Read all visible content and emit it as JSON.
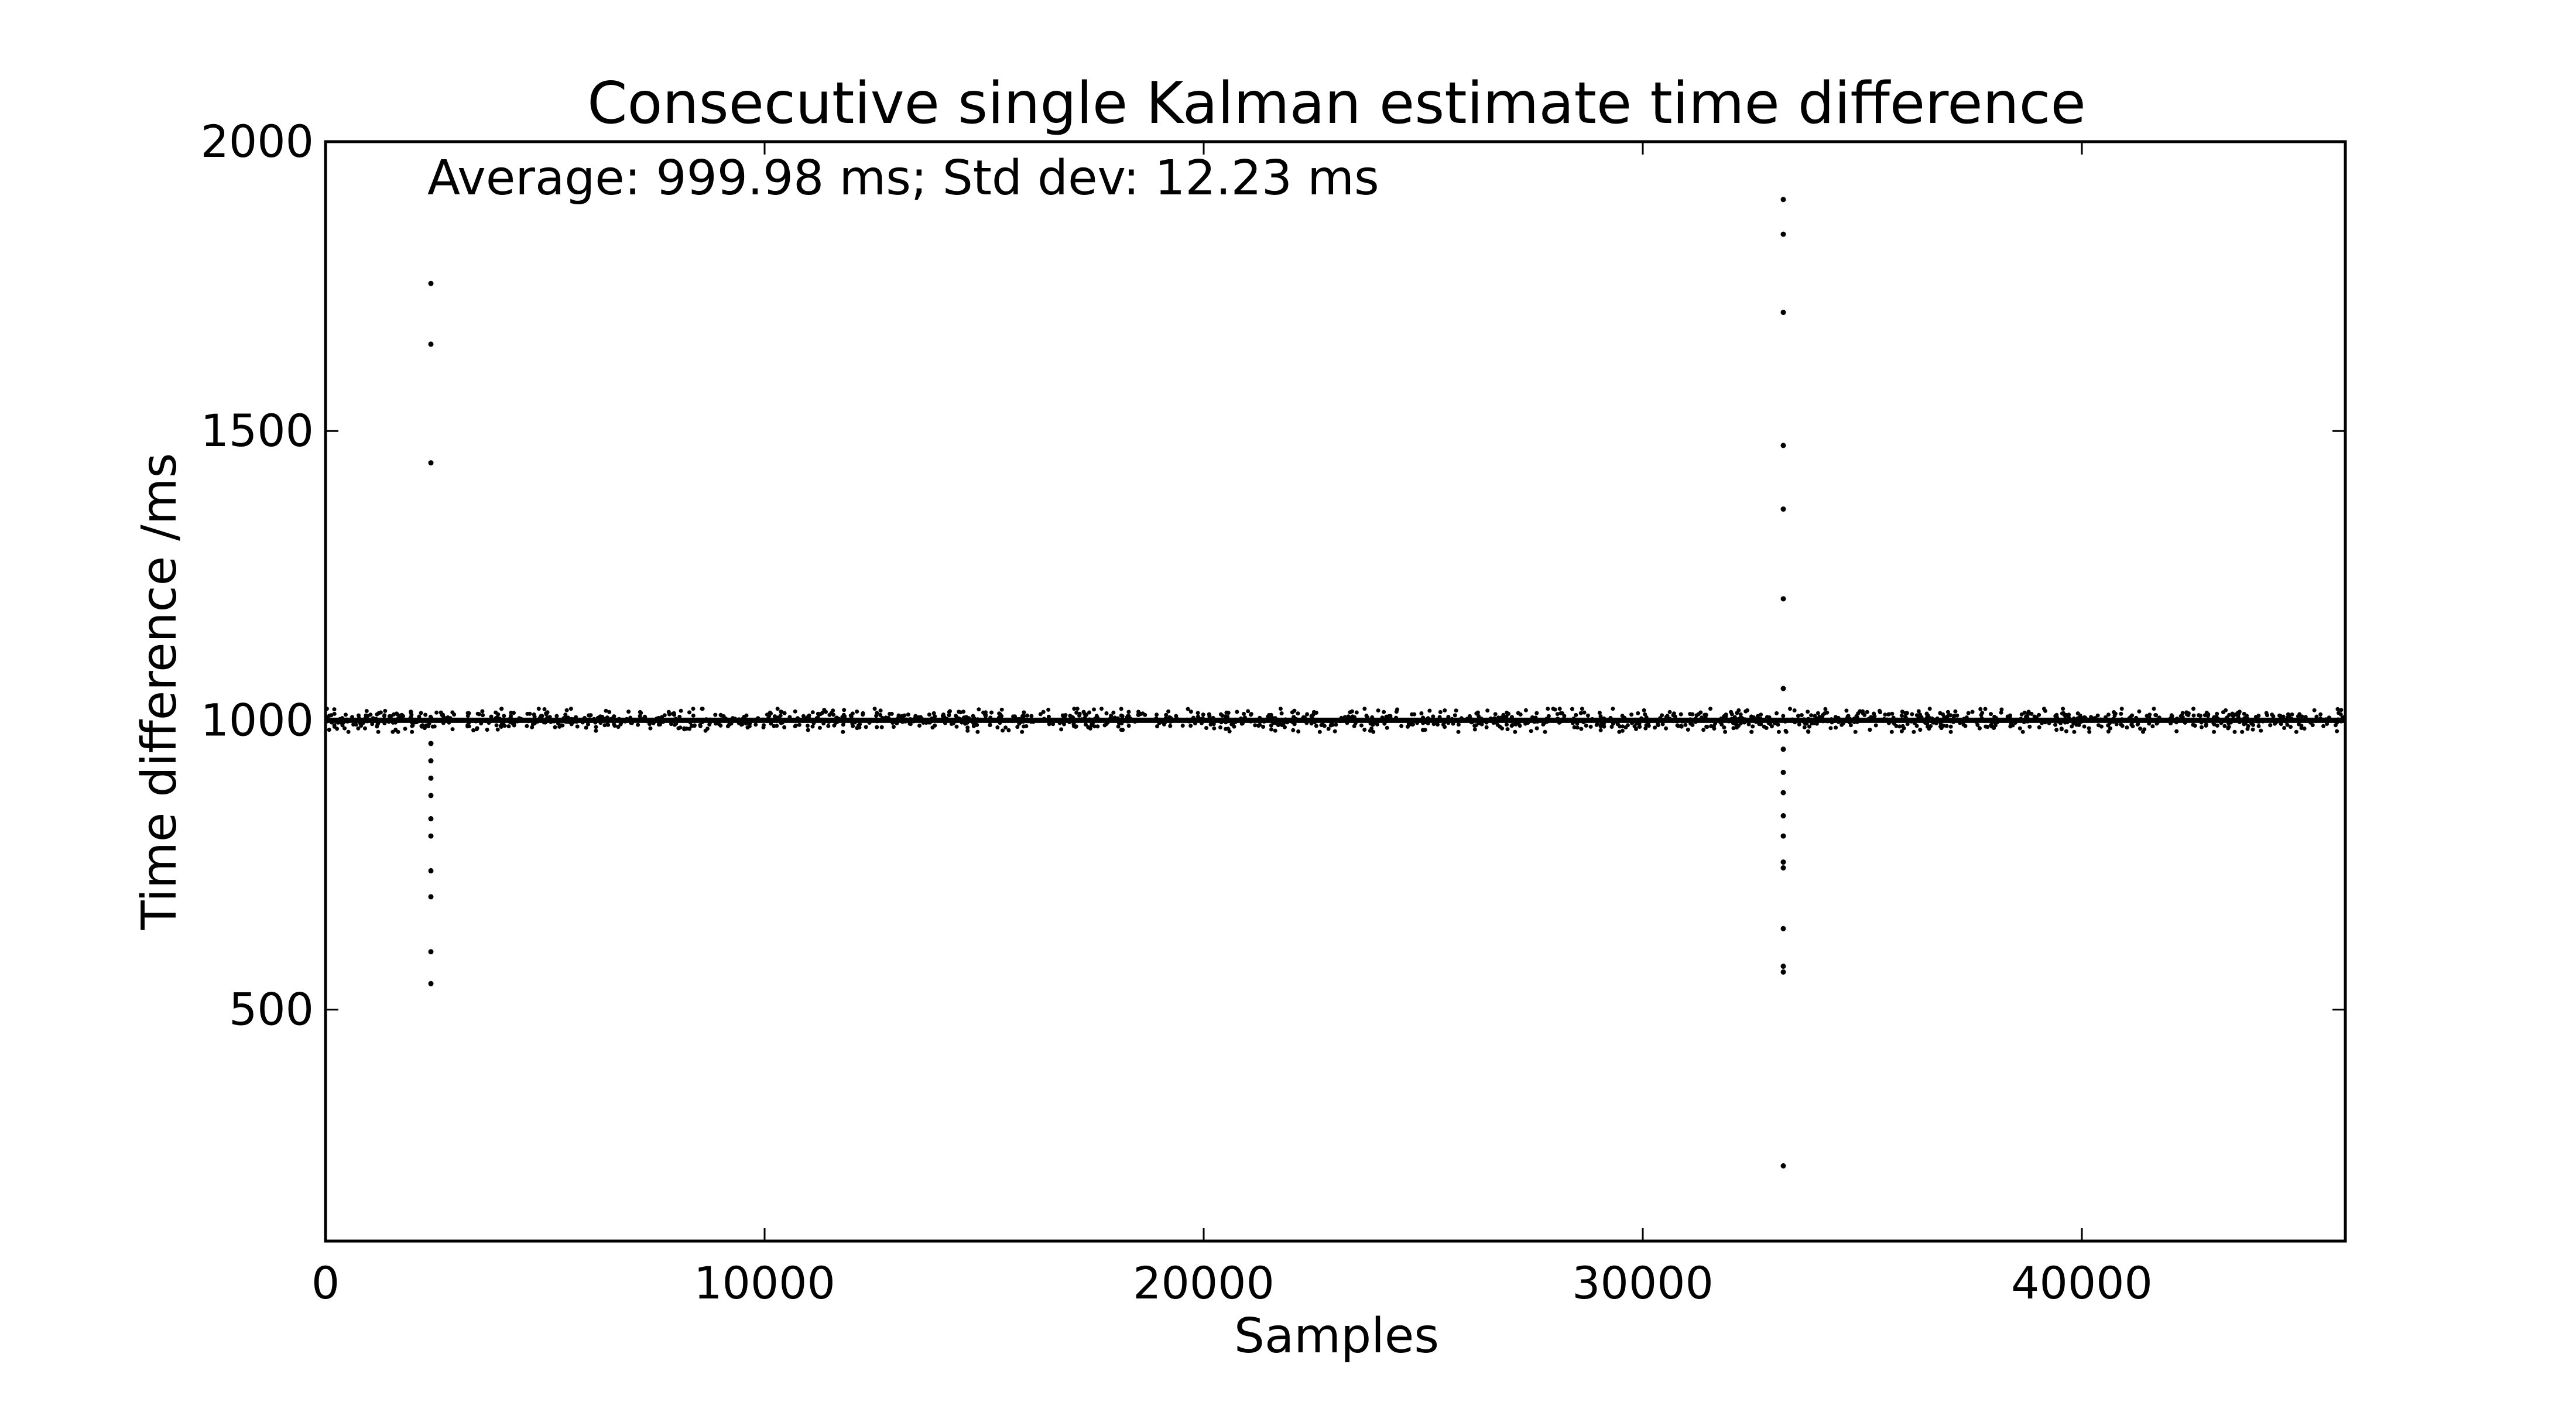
{
  "chart_data": {
    "type": "scatter",
    "title": "Consecutive single Kalman estimate time difference",
    "xlabel": "Samples",
    "ylabel": "Time difference /ms",
    "annotation": "Average: 999.98 ms;  Std dev: 12.23 ms",
    "xlim": [
      0,
      46000
    ],
    "ylim": [
      100,
      2000
    ],
    "x_ticks": [
      0,
      10000,
      20000,
      30000,
      40000
    ],
    "y_ticks": [
      500,
      1000,
      1500,
      2000
    ],
    "grid": false,
    "legend": "none",
    "marker_color": "#000000",
    "baseline": {
      "x_range": [
        0,
        46000
      ],
      "center": 1000,
      "spread": 20,
      "description_count": 1800
    },
    "outliers": [
      {
        "x": 2400,
        "y": 1755
      },
      {
        "x": 2400,
        "y": 1650
      },
      {
        "x": 2400,
        "y": 1445
      },
      {
        "x": 2400,
        "y": 960
      },
      {
        "x": 2400,
        "y": 930
      },
      {
        "x": 2400,
        "y": 900
      },
      {
        "x": 2400,
        "y": 870
      },
      {
        "x": 2400,
        "y": 830
      },
      {
        "x": 2400,
        "y": 800
      },
      {
        "x": 2400,
        "y": 740
      },
      {
        "x": 2400,
        "y": 695
      },
      {
        "x": 2400,
        "y": 600
      },
      {
        "x": 2400,
        "y": 545
      },
      {
        "x": 33200,
        "y": 1900
      },
      {
        "x": 33200,
        "y": 1840
      },
      {
        "x": 33200,
        "y": 1705
      },
      {
        "x": 33200,
        "y": 1475
      },
      {
        "x": 33200,
        "y": 1365
      },
      {
        "x": 33200,
        "y": 1210
      },
      {
        "x": 33200,
        "y": 1055
      },
      {
        "x": 33200,
        "y": 950
      },
      {
        "x": 33200,
        "y": 910
      },
      {
        "x": 33200,
        "y": 875
      },
      {
        "x": 33200,
        "y": 835
      },
      {
        "x": 33200,
        "y": 800
      },
      {
        "x": 33200,
        "y": 755
      },
      {
        "x": 33200,
        "y": 745
      },
      {
        "x": 33200,
        "y": 640
      },
      {
        "x": 33200,
        "y": 575
      },
      {
        "x": 33200,
        "y": 565
      },
      {
        "x": 33200,
        "y": 230
      }
    ]
  }
}
